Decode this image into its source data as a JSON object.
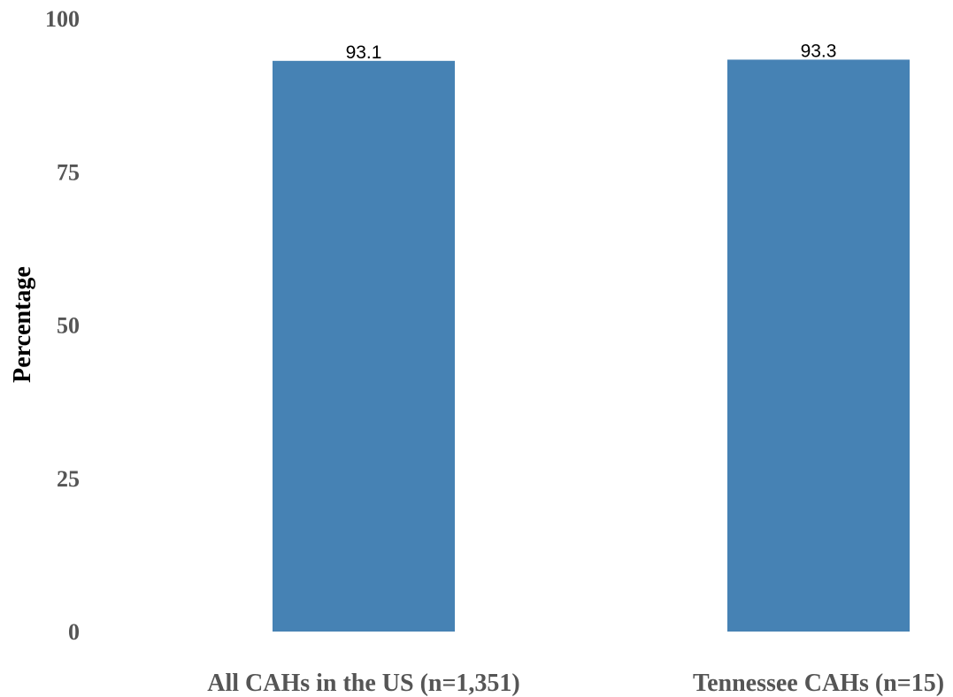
{
  "chart_data": {
    "type": "bar",
    "categories": [
      "All CAHs in the US (n=1,351)",
      "Tennessee CAHs (n=15)"
    ],
    "values": [
      93.1,
      93.3
    ],
    "value_labels": [
      "93.1",
      "93.3"
    ],
    "title": "",
    "xlabel": "",
    "ylabel": "Percentage",
    "ylim": [
      0,
      100
    ],
    "yticks": [
      0,
      25,
      50,
      75,
      100
    ],
    "ytick_labels": [
      "0",
      "25",
      "50",
      "75",
      "100"
    ],
    "grid": false,
    "legend": "none",
    "bar_color": "#4682B4"
  }
}
